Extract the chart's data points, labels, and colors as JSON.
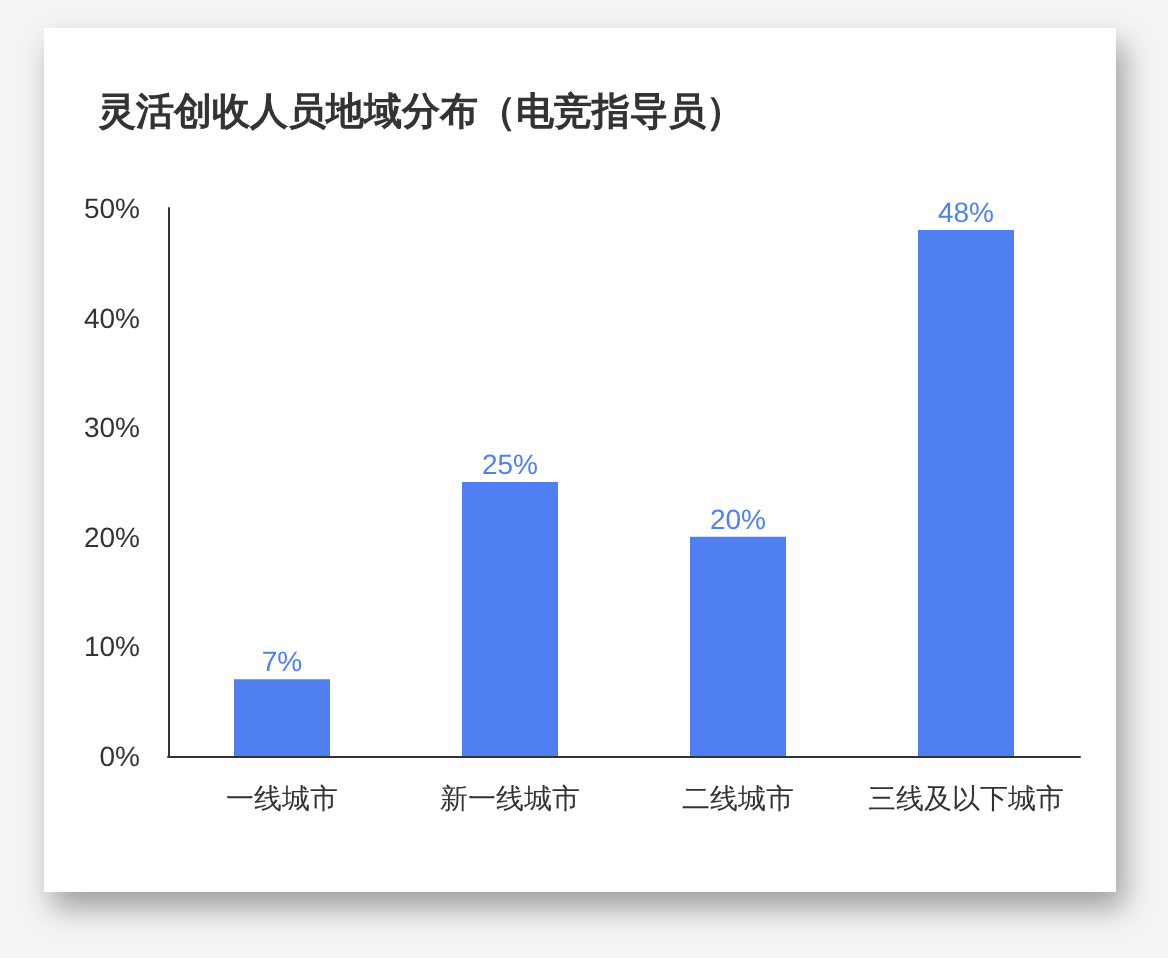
{
  "chart_data": {
    "type": "bar",
    "title": "灵活创收人员地域分布（电竞指导员）",
    "categories": [
      "一线城市",
      "新一线城市",
      "二线城市",
      "三线及以下城市"
    ],
    "values": [
      7,
      25,
      20,
      48
    ],
    "value_labels": [
      "7%",
      "25%",
      "20%",
      "48%"
    ],
    "color": "#4f7ff0",
    "ylim": [
      0,
      50
    ],
    "yticks": [
      {
        "value": 0,
        "label": "0%"
      },
      {
        "value": 10,
        "label": "10%"
      },
      {
        "value": 20,
        "label": "20%"
      },
      {
        "value": 30,
        "label": "30%"
      },
      {
        "value": 40,
        "label": "40%"
      },
      {
        "value": 50,
        "label": "50%"
      }
    ],
    "grid": false
  }
}
